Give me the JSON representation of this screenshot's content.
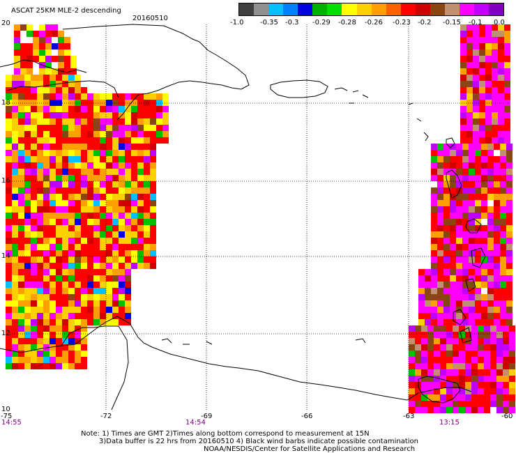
{
  "header": {
    "title": "ASCAT 25KM MLE-2 descending",
    "date": "20160510"
  },
  "colorbar": {
    "colors": [
      "#404040",
      "#909090",
      "#00c0ff",
      "#0080ff",
      "#0000e0",
      "#00b000",
      "#00e000",
      "#ffff00",
      "#ffd000",
      "#ffa000",
      "#ff6000",
      "#ff0000",
      "#d00000",
      "#8b4513",
      "#c09070",
      "#ff00ff",
      "#c000ff",
      "#8000c0"
    ],
    "labels": [
      "-1.0",
      "-0.35",
      "-0.3",
      "-0.29",
      "-0.28",
      "-0.26",
      "-0.23",
      "-0.2",
      "-0.15",
      "-0.1",
      "0.0"
    ]
  },
  "axes": {
    "lon_labels": [
      "-75",
      "-72",
      "-69",
      "-66",
      "-63",
      "-60"
    ],
    "lat_labels": [
      "20",
      "18",
      "16",
      "14",
      "12",
      "10"
    ],
    "time_labels": [
      "14:55",
      "14:54",
      "13:15"
    ],
    "grid": true
  },
  "notes": {
    "line1": "Note: 1) Times are GMT 2)Times along bottom correspond to measurement at 15N",
    "line2": "3)Data buffer is 22 hrs from 20160510 4) Black wind barbs indicate possible contamination",
    "line3": "NOAA/NESDIS/Center for Satellite Applications and Research"
  }
}
